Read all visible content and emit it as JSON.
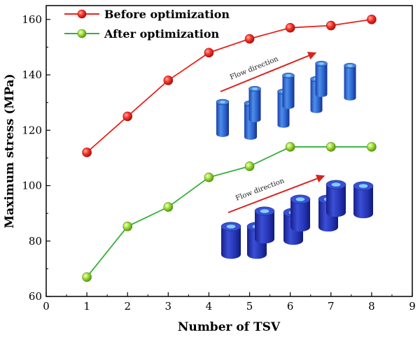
{
  "chart_data": {
    "type": "line",
    "title": "",
    "xlabel": "Number of TSV",
    "ylabel": "Maximum stress (MPa)",
    "xlim": [
      0,
      9
    ],
    "ylim": [
      60,
      165
    ],
    "xticks": [
      0,
      1,
      2,
      3,
      4,
      5,
      6,
      7,
      8,
      9
    ],
    "yticks": [
      60,
      80,
      100,
      120,
      140,
      160
    ],
    "legend_position": "top-left",
    "x": [
      1,
      2,
      3,
      4,
      5,
      6,
      7,
      8
    ],
    "series": [
      {
        "name": "Before optimization",
        "color": "#e8231f",
        "marker_color": "#ff3a30",
        "values": [
          112,
          125,
          138,
          148,
          153,
          157,
          157.8,
          160
        ]
      },
      {
        "name": "After optimization",
        "color": "#36b03a",
        "marker_color": "#a8e23c",
        "values": [
          67,
          85.3,
          92.3,
          103,
          107,
          114,
          114,
          114
        ]
      }
    ],
    "annotations": [
      {
        "id": "top-inset",
        "text": "Flow direction",
        "arrow_color": "#d9231f",
        "cylinder_color": "#2f6fd4"
      },
      {
        "id": "bottom-inset",
        "text": "Flow direction",
        "arrow_color": "#d9231f",
        "cylinder_color": "#2a35b8"
      }
    ]
  }
}
